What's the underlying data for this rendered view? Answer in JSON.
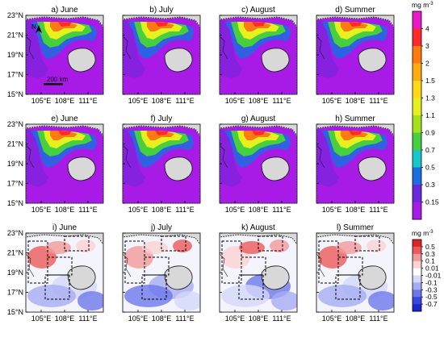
{
  "panels": [
    {
      "title": "a) June",
      "row": 0,
      "col": 0
    },
    {
      "title": "b) July",
      "row": 0,
      "col": 1
    },
    {
      "title": "c) August",
      "row": 0,
      "col": 2
    },
    {
      "title": "d) Summer",
      "row": 0,
      "col": 3
    },
    {
      "title": "e) June",
      "row": 1,
      "col": 0
    },
    {
      "title": "f) July",
      "row": 1,
      "col": 1
    },
    {
      "title": "g) August",
      "row": 1,
      "col": 2
    },
    {
      "title": "h) Summer",
      "row": 1,
      "col": 3
    },
    {
      "title": "i) June",
      "row": 2,
      "col": 0
    },
    {
      "title": "j) July",
      "row": 2,
      "col": 1
    },
    {
      "title": "k) August",
      "row": 2,
      "col": 2
    },
    {
      "title": "l) Summer",
      "row": 2,
      "col": 3
    }
  ],
  "lon_ticks": [
    "105°E",
    "108°E",
    "111°E"
  ],
  "lat_ticks": [
    "23°N",
    "21°N",
    "19°N",
    "17°N",
    "15°N"
  ],
  "north_label": "N",
  "scale_bar_label": "200 km",
  "colorbar_chl": {
    "unit_label": "mg m",
    "unit_exponent": "-3",
    "labels": [
      "4",
      "3",
      "2",
      "1.5",
      "1.3",
      "1.1",
      "0.9",
      "0.7",
      "0.5",
      "0.3",
      "0.15"
    ],
    "colors": [
      "#e81ac8",
      "#ff2a2a",
      "#ff7a10",
      "#ffaa10",
      "#ffd81a",
      "#e6f01e",
      "#a6e020",
      "#46d040",
      "#18c8c8",
      "#1a6ee0",
      "#6a28d8",
      "#a81ae6"
    ]
  },
  "colorbar_diff": {
    "unit_label": "mg m",
    "unit_exponent": "-3",
    "labels": [
      "0.5",
      "0.3",
      "0.1",
      "0.01",
      "-0.01",
      "-0.1",
      "-0.3",
      "-0.5",
      "-0.7"
    ],
    "colors": [
      "#e02424",
      "#ec5a5a",
      "#f29a9a",
      "#fad2d2",
      "#ffffff",
      "#d4d8fa",
      "#a6acf2",
      "#6e78ea",
      "#3a46e0",
      "#1e28c8"
    ]
  },
  "colors": {
    "land": "#d8d8d8",
    "coast": "#111111"
  }
}
